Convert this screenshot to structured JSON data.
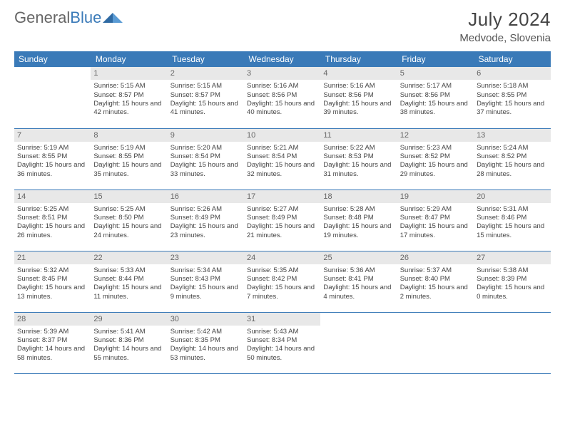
{
  "brand": {
    "word1": "General",
    "word2": "Blue"
  },
  "title": "July 2024",
  "location": "Medvode, Slovenia",
  "colors": {
    "header_bg": "#3a7ab8",
    "header_text": "#ffffff",
    "daynum_bg": "#e8e8e8",
    "daynum_text": "#666666",
    "border": "#3a7ab8",
    "body_text": "#444444"
  },
  "weekdays": [
    "Sunday",
    "Monday",
    "Tuesday",
    "Wednesday",
    "Thursday",
    "Friday",
    "Saturday"
  ],
  "weeks": [
    [
      null,
      {
        "n": "1",
        "sr": "5:15 AM",
        "ss": "8:57 PM",
        "dl": "15 hours and 42 minutes."
      },
      {
        "n": "2",
        "sr": "5:15 AM",
        "ss": "8:57 PM",
        "dl": "15 hours and 41 minutes."
      },
      {
        "n": "3",
        "sr": "5:16 AM",
        "ss": "8:56 PM",
        "dl": "15 hours and 40 minutes."
      },
      {
        "n": "4",
        "sr": "5:16 AM",
        "ss": "8:56 PM",
        "dl": "15 hours and 39 minutes."
      },
      {
        "n": "5",
        "sr": "5:17 AM",
        "ss": "8:56 PM",
        "dl": "15 hours and 38 minutes."
      },
      {
        "n": "6",
        "sr": "5:18 AM",
        "ss": "8:55 PM",
        "dl": "15 hours and 37 minutes."
      }
    ],
    [
      {
        "n": "7",
        "sr": "5:19 AM",
        "ss": "8:55 PM",
        "dl": "15 hours and 36 minutes."
      },
      {
        "n": "8",
        "sr": "5:19 AM",
        "ss": "8:55 PM",
        "dl": "15 hours and 35 minutes."
      },
      {
        "n": "9",
        "sr": "5:20 AM",
        "ss": "8:54 PM",
        "dl": "15 hours and 33 minutes."
      },
      {
        "n": "10",
        "sr": "5:21 AM",
        "ss": "8:54 PM",
        "dl": "15 hours and 32 minutes."
      },
      {
        "n": "11",
        "sr": "5:22 AM",
        "ss": "8:53 PM",
        "dl": "15 hours and 31 minutes."
      },
      {
        "n": "12",
        "sr": "5:23 AM",
        "ss": "8:52 PM",
        "dl": "15 hours and 29 minutes."
      },
      {
        "n": "13",
        "sr": "5:24 AM",
        "ss": "8:52 PM",
        "dl": "15 hours and 28 minutes."
      }
    ],
    [
      {
        "n": "14",
        "sr": "5:25 AM",
        "ss": "8:51 PM",
        "dl": "15 hours and 26 minutes."
      },
      {
        "n": "15",
        "sr": "5:25 AM",
        "ss": "8:50 PM",
        "dl": "15 hours and 24 minutes."
      },
      {
        "n": "16",
        "sr": "5:26 AM",
        "ss": "8:49 PM",
        "dl": "15 hours and 23 minutes."
      },
      {
        "n": "17",
        "sr": "5:27 AM",
        "ss": "8:49 PM",
        "dl": "15 hours and 21 minutes."
      },
      {
        "n": "18",
        "sr": "5:28 AM",
        "ss": "8:48 PM",
        "dl": "15 hours and 19 minutes."
      },
      {
        "n": "19",
        "sr": "5:29 AM",
        "ss": "8:47 PM",
        "dl": "15 hours and 17 minutes."
      },
      {
        "n": "20",
        "sr": "5:31 AM",
        "ss": "8:46 PM",
        "dl": "15 hours and 15 minutes."
      }
    ],
    [
      {
        "n": "21",
        "sr": "5:32 AM",
        "ss": "8:45 PM",
        "dl": "15 hours and 13 minutes."
      },
      {
        "n": "22",
        "sr": "5:33 AM",
        "ss": "8:44 PM",
        "dl": "15 hours and 11 minutes."
      },
      {
        "n": "23",
        "sr": "5:34 AM",
        "ss": "8:43 PM",
        "dl": "15 hours and 9 minutes."
      },
      {
        "n": "24",
        "sr": "5:35 AM",
        "ss": "8:42 PM",
        "dl": "15 hours and 7 minutes."
      },
      {
        "n": "25",
        "sr": "5:36 AM",
        "ss": "8:41 PM",
        "dl": "15 hours and 4 minutes."
      },
      {
        "n": "26",
        "sr": "5:37 AM",
        "ss": "8:40 PM",
        "dl": "15 hours and 2 minutes."
      },
      {
        "n": "27",
        "sr": "5:38 AM",
        "ss": "8:39 PM",
        "dl": "15 hours and 0 minutes."
      }
    ],
    [
      {
        "n": "28",
        "sr": "5:39 AM",
        "ss": "8:37 PM",
        "dl": "14 hours and 58 minutes."
      },
      {
        "n": "29",
        "sr": "5:41 AM",
        "ss": "8:36 PM",
        "dl": "14 hours and 55 minutes."
      },
      {
        "n": "30",
        "sr": "5:42 AM",
        "ss": "8:35 PM",
        "dl": "14 hours and 53 minutes."
      },
      {
        "n": "31",
        "sr": "5:43 AM",
        "ss": "8:34 PM",
        "dl": "14 hours and 50 minutes."
      },
      null,
      null,
      null
    ]
  ],
  "labels": {
    "sunrise": "Sunrise:",
    "sunset": "Sunset:",
    "daylight": "Daylight:"
  }
}
